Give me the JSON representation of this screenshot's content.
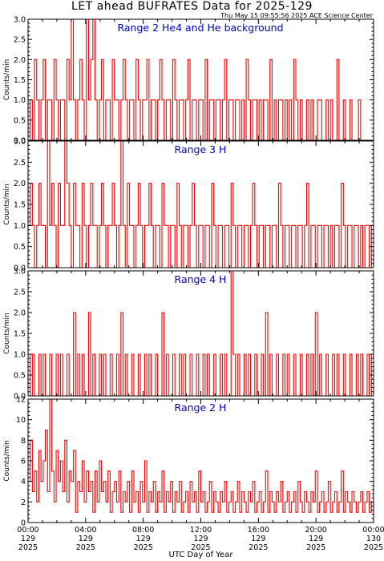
{
  "header": {
    "title": "LET ahead BUFRATES Data for 2025-129",
    "subtitle": "Thu May 15 09:55:56 2025 ACE Science Center"
  },
  "colors": {
    "series": "#ff0000",
    "panel_title": "#0000cc",
    "axes": "#000000"
  },
  "chart_data": [
    {
      "type": "line",
      "title": "Range 2 He4 and He background",
      "ylabel": "Counts/min",
      "ylim": [
        0,
        3.0
      ],
      "yticks": [
        "0.0",
        "0.5",
        "1.0",
        "1.5",
        "2.0",
        "2.5",
        "3.0"
      ],
      "xlim": [
        0,
        24
      ],
      "series": [
        {
          "values": [
            0,
            1,
            0,
            2,
            1,
            0,
            1,
            2,
            0,
            1,
            1,
            0,
            2,
            1,
            0,
            1,
            1,
            0,
            2,
            1,
            3,
            1,
            0,
            1,
            2,
            1,
            0,
            3,
            1,
            2,
            3,
            1,
            0,
            1,
            2,
            0,
            1,
            1,
            0,
            2,
            1,
            1,
            0,
            1,
            2,
            1,
            0,
            1,
            1,
            0,
            2,
            1,
            0,
            1,
            1,
            2,
            0,
            1,
            1,
            0,
            1,
            2,
            1,
            0,
            1,
            1,
            0,
            2,
            1,
            0,
            1,
            1,
            0,
            1,
            2,
            0,
            1,
            1,
            0,
            1,
            1,
            0,
            2,
            0,
            1,
            1,
            0,
            1,
            1,
            0,
            1,
            2,
            0,
            1,
            1,
            0,
            1,
            1,
            0,
            1,
            0,
            2,
            1,
            0,
            1,
            1,
            0,
            1,
            0,
            1,
            1,
            0,
            2,
            0,
            1,
            0,
            1,
            1,
            0,
            1,
            0,
            1,
            0,
            2,
            1,
            0,
            1,
            0,
            0,
            1,
            0,
            1,
            0,
            0,
            1,
            1,
            0,
            0,
            1,
            0,
            1,
            0,
            0,
            2,
            0,
            0,
            1,
            0,
            0,
            1,
            0,
            0,
            0,
            1,
            0,
            0,
            0,
            0,
            0,
            0
          ]
        }
      ]
    },
    {
      "type": "line",
      "title": "Range 3 H",
      "ylabel": "Counts/min",
      "ylim": [
        0,
        3.0
      ],
      "yticks": [
        "0.0",
        "0.5",
        "1.0",
        "1.5",
        "2.0",
        "2.5",
        "3.0"
      ],
      "xlim": [
        0,
        24
      ],
      "series": [
        {
          "values": [
            1,
            2,
            1,
            0,
            1,
            2,
            1,
            1,
            0,
            3,
            1,
            2,
            1,
            0,
            2,
            1,
            1,
            3,
            2,
            1,
            0,
            2,
            1,
            1,
            0,
            2,
            1,
            0,
            1,
            2,
            1,
            1,
            0,
            1,
            2,
            1,
            0,
            1,
            1,
            2,
            1,
            0,
            1,
            3,
            1,
            0,
            2,
            1,
            1,
            0,
            1,
            2,
            1,
            0,
            1,
            1,
            2,
            1,
            0,
            1,
            1,
            0,
            2,
            1,
            1,
            0,
            1,
            1,
            0,
            2,
            1,
            0,
            1,
            1,
            0,
            1,
            2,
            1,
            0,
            1,
            1,
            0,
            1,
            1,
            0,
            2,
            1,
            0,
            1,
            1,
            0,
            1,
            1,
            0,
            2,
            1,
            0,
            1,
            1,
            0,
            1,
            1,
            0,
            1,
            2,
            1,
            0,
            1,
            1,
            0,
            1,
            1,
            0,
            1,
            1,
            0,
            2,
            1,
            0,
            1,
            1,
            0,
            1,
            1,
            0,
            1,
            1,
            0,
            1,
            2,
            0,
            1,
            1,
            0,
            1,
            1,
            0,
            1,
            1,
            0,
            1,
            0,
            1,
            1,
            0,
            2,
            1,
            0,
            1,
            1,
            0,
            1,
            1,
            0,
            1,
            0,
            1,
            1,
            0,
            1
          ]
        }
      ]
    },
    {
      "type": "line",
      "title": "Range 4 H",
      "ylabel": "Counts/min",
      "ylim": [
        0,
        3.0
      ],
      "yticks": [
        "0.0",
        "0.5",
        "1.0",
        "1.5",
        "2.0",
        "2.5",
        "3.0"
      ],
      "xlim": [
        0,
        24
      ],
      "series": [
        {
          "values": [
            1,
            0,
            1,
            0,
            0,
            1,
            0,
            1,
            0,
            0,
            1,
            0,
            0,
            1,
            0,
            1,
            0,
            0,
            1,
            0,
            0,
            2,
            0,
            1,
            0,
            1,
            0,
            0,
            2,
            0,
            1,
            0,
            0,
            1,
            0,
            1,
            0,
            0,
            1,
            0,
            0,
            1,
            0,
            2,
            0,
            1,
            0,
            0,
            1,
            0,
            0,
            1,
            0,
            0,
            1,
            0,
            1,
            0,
            0,
            1,
            0,
            0,
            2,
            0,
            1,
            0,
            0,
            1,
            0,
            0,
            1,
            0,
            1,
            0,
            0,
            1,
            0,
            0,
            1,
            0,
            0,
            1,
            0,
            1,
            0,
            0,
            1,
            0,
            0,
            1,
            0,
            1,
            0,
            0,
            3,
            1,
            0,
            1,
            0,
            0,
            1,
            0,
            1,
            0,
            0,
            1,
            0,
            0,
            1,
            0,
            2,
            0,
            1,
            0,
            0,
            1,
            0,
            0,
            1,
            0,
            1,
            0,
            0,
            1,
            0,
            0,
            1,
            0,
            0,
            1,
            0,
            1,
            0,
            2,
            0,
            1,
            0,
            0,
            1,
            0,
            0,
            1,
            0,
            1,
            0,
            0,
            1,
            0,
            0,
            1,
            0,
            0,
            1,
            0,
            1,
            0,
            0,
            1,
            0,
            1
          ]
        }
      ]
    },
    {
      "type": "line",
      "title": "Range 2 H",
      "ylabel": "Counts/min",
      "ylim": [
        0,
        12
      ],
      "yticks": [
        "0",
        "2",
        "4",
        "6",
        "8",
        "10",
        "12"
      ],
      "xlim": [
        0,
        24
      ],
      "xticks": [
        {
          "time": "00:00",
          "doy": "129",
          "year": "2025"
        },
        {
          "time": "04:00",
          "doy": "129",
          "year": "2025"
        },
        {
          "time": "08:00",
          "doy": "129",
          "year": "2025"
        },
        {
          "time": "12:00",
          "doy": "129",
          "year": "2025"
        },
        {
          "time": "16:00",
          "doy": "129",
          "year": "2025"
        },
        {
          "time": "20:00",
          "doy": "129",
          "year": "2025"
        },
        {
          "time": "00:00",
          "doy": "130",
          "year": "2025"
        }
      ],
      "xlabel": "UTC Day of Year",
      "series": [
        {
          "values": [
            4,
            8,
            3,
            5,
            2,
            7,
            4,
            6,
            9,
            3,
            12,
            5,
            2,
            7,
            4,
            6,
            3,
            8,
            2,
            5,
            4,
            7,
            1,
            4,
            3,
            6,
            2,
            5,
            3,
            4,
            1,
            5,
            2,
            6,
            3,
            4,
            2,
            5,
            1,
            3,
            4,
            2,
            5,
            1,
            3,
            2,
            4,
            1,
            5,
            2,
            3,
            1,
            4,
            2,
            6,
            1,
            3,
            2,
            4,
            1,
            3,
            2,
            5,
            1,
            3,
            2,
            4,
            1,
            3,
            2,
            4,
            1,
            2,
            3,
            1,
            4,
            2,
            3,
            1,
            5,
            2,
            3,
            1,
            2,
            4,
            1,
            3,
            2,
            1,
            3,
            2,
            4,
            1,
            2,
            3,
            1,
            2,
            4,
            1,
            3,
            2,
            1,
            3,
            2,
            4,
            1,
            2,
            3,
            1,
            2,
            5,
            1,
            3,
            2,
            1,
            3,
            2,
            4,
            1,
            2,
            3,
            1,
            2,
            3,
            1,
            4,
            2,
            1,
            3,
            2,
            1,
            3,
            2,
            5,
            1,
            2,
            3,
            1,
            2,
            4,
            1,
            2,
            3,
            1,
            2,
            5,
            1,
            3,
            2,
            1,
            3,
            2,
            1,
            2,
            3,
            1,
            2,
            3,
            1,
            2
          ]
        }
      ]
    }
  ]
}
